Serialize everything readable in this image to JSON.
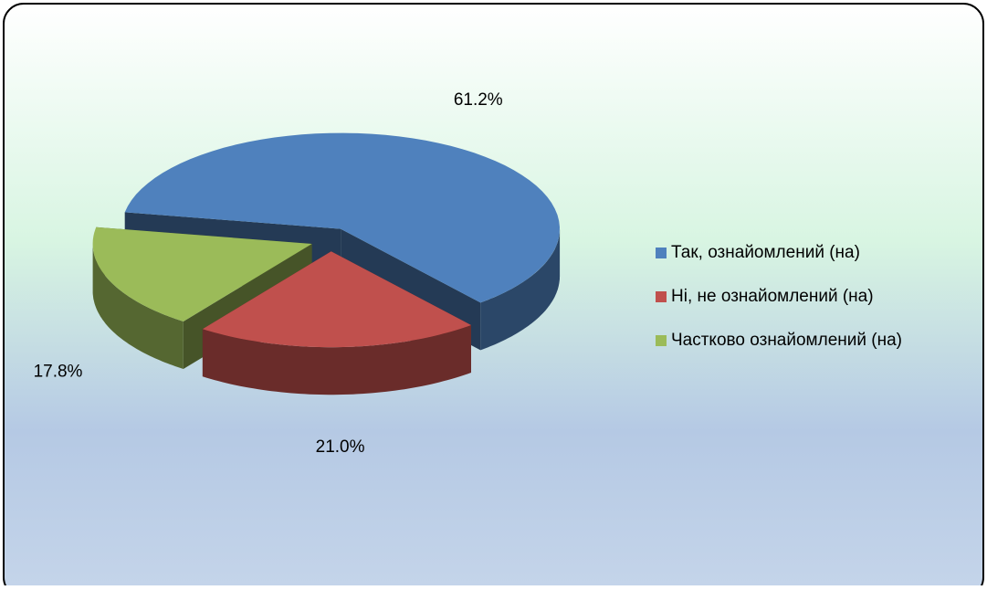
{
  "chart_data": {
    "type": "pie",
    "categories": [
      "Так, ознайомлений (на)",
      "Ні, не ознайомлений (на)",
      "Частково ознайомлений (на)"
    ],
    "values": [
      61.2,
      21.0,
      17.8
    ],
    "value_labels": [
      "61.2%",
      "21.0%",
      "17.8%"
    ],
    "colors": [
      "#4f81bd",
      "#c0504d",
      "#9bbb59"
    ],
    "legend": "right"
  }
}
